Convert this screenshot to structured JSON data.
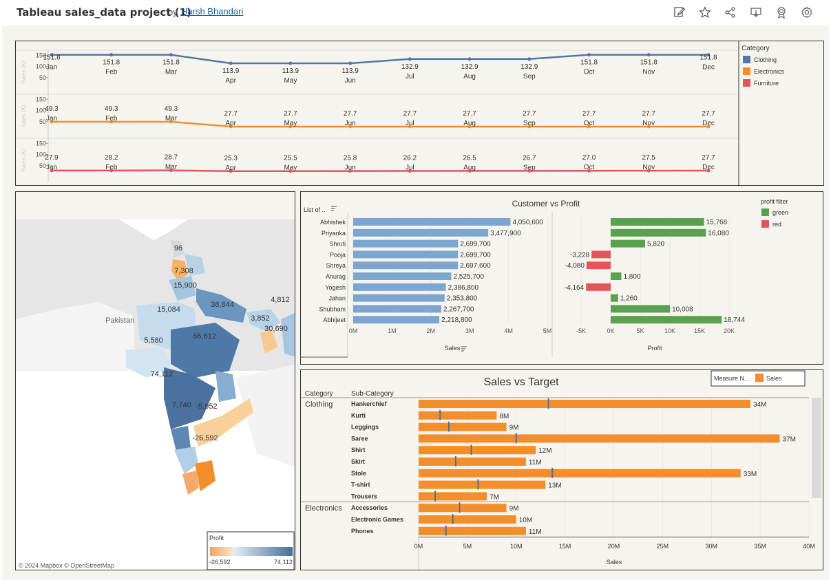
{
  "header": {
    "title": "Tableau sales_data project (1)",
    "by": "by",
    "author": "Harsh Bhandari"
  },
  "toolbar": {
    "icons": [
      "edit-icon",
      "star-icon",
      "share-icon",
      "download-icon",
      "award-icon",
      "gear-icon"
    ]
  },
  "colors": {
    "clothing": "#4e79a7",
    "electronics": "#f28e2b",
    "furniture": "#e15759",
    "green": "#59a14f",
    "red": "#e15759",
    "sales_bar": "#f28e2b",
    "customer_bar": "#7aa6d0",
    "map_high": "#466d97",
    "map_low": "#f5a15c"
  },
  "line_chart": {
    "months": [
      "Jan",
      "Feb",
      "Mar",
      "Apr",
      "May",
      "Jun",
      "Jul",
      "Aug",
      "Sep",
      "Oct",
      "Nov",
      "Dec"
    ],
    "y_ticks": [
      "150",
      "100",
      "50"
    ],
    "y_label": "Sales (K)",
    "series": [
      {
        "name": "Clothing",
        "labels": [
          "151.8",
          "151.8",
          "151.8",
          "113.9",
          "113.9",
          "113.9",
          "132.9",
          "132.9",
          "132.9",
          "151.8",
          "151.8",
          "151.8"
        ],
        "values": [
          151.8,
          151.8,
          151.8,
          113.9,
          113.9,
          113.9,
          132.9,
          132.9,
          132.9,
          151.8,
          151.8,
          151.8
        ]
      },
      {
        "name": "Electronics",
        "labels": [
          "49.3",
          "49.3",
          "49.3",
          "27.7",
          "27.7",
          "27.7",
          "27.7",
          "27.7",
          "27.7",
          "27.7",
          "27.7",
          "27.7"
        ],
        "values": [
          49.3,
          49.3,
          49.3,
          27.7,
          27.7,
          27.7,
          27.7,
          27.7,
          27.7,
          27.7,
          27.7,
          27.7
        ]
      },
      {
        "name": "Furniture",
        "labels": [
          "27.9",
          "28.2",
          "28.7",
          "25.3",
          "25.5",
          "25.8",
          "26.2",
          "26.5",
          "26.7",
          "27.0",
          "27.5",
          "27.7"
        ],
        "values": [
          27.9,
          28.2,
          28.7,
          25.3,
          25.5,
          25.8,
          26.2,
          26.5,
          26.7,
          27.0,
          27.5,
          27.7
        ]
      }
    ]
  },
  "legend_category": {
    "title": "Category",
    "items": [
      "Clothing",
      "Electronics",
      "Furniture"
    ]
  },
  "map": {
    "labels": [
      "96",
      "7,308",
      "15,900",
      "38,844",
      "4,812",
      "15,084",
      "3,852",
      "30,690",
      "66,612",
      "5,580",
      "74,112",
      "7,740",
      "-5,952",
      "-26,592"
    ],
    "place": "Pakistan",
    "copyright": "© 2024 Mapbox  © OpenStreetMap",
    "legend_title": "Profit",
    "legend_min": "-26,592",
    "legend_max": "74,112"
  },
  "customer_chart": {
    "title": "Customer vs Profit",
    "list_header": "List of ..",
    "customers": [
      "Abhishek",
      "Priyanka",
      "Shruti",
      "Pooja",
      "Shreya",
      "Anurag",
      "Yogesh",
      "Jahan",
      "Shubham",
      "Abhijeet"
    ],
    "sales": [
      4050600,
      3477900,
      2699700,
      2699700,
      2697600,
      2525700,
      2386800,
      2353800,
      2267700,
      2218800
    ],
    "sales_labels": [
      "4,050,600",
      "3,477,900",
      "2,699,700",
      "2,699,700",
      "2,697,600",
      "2,525,700",
      "2,386,800",
      "2,353,800",
      "2,267,700",
      "2,218,800"
    ],
    "profit": [
      15768,
      16080,
      5820,
      -3228,
      -4080,
      1800,
      -4164,
      1260,
      10008,
      18744
    ],
    "profit_labels": [
      "15,768",
      "16,080",
      "5,820",
      "-3,228",
      "-4,080",
      "1,800",
      "-4,164",
      "1,260",
      "10,008",
      "18,744"
    ],
    "sales_ticks": [
      "0M",
      "1M",
      "2M",
      "3M",
      "4M",
      "5M"
    ],
    "profit_ticks": [
      "-5K",
      "0K",
      "5K",
      "10K",
      "15K",
      "20K"
    ],
    "sales_axis": "Sales",
    "profit_axis": "Profit",
    "legend_title": "profit filter",
    "legend_items": [
      "green",
      "red"
    ]
  },
  "target_chart": {
    "title": "Sales vs Target",
    "measure_legend": "Measure N...",
    "measure_item": "Sales",
    "col_category": "Category",
    "col_subcategory": "Sub-Category",
    "groups": [
      {
        "category": "Clothing",
        "items": [
          {
            "name": "Hankerchief",
            "value": 34,
            "label": "34M",
            "target": 13.3
          },
          {
            "name": "Kurti",
            "value": 8,
            "label": "8M",
            "target": 2.2
          },
          {
            "name": "Leggings",
            "value": 9,
            "label": "9M",
            "target": 3.1
          },
          {
            "name": "Saree",
            "value": 37,
            "label": "37M",
            "target": 10.0
          },
          {
            "name": "Shirt",
            "value": 12,
            "label": "12M",
            "target": 5.4
          },
          {
            "name": "Skirt",
            "value": 11,
            "label": "11M",
            "target": 3.8
          },
          {
            "name": "Stole",
            "value": 33,
            "label": "33M",
            "target": 13.7
          },
          {
            "name": "T-shirt",
            "value": 13,
            "label": "13M",
            "target": 6.1
          },
          {
            "name": "Trousers",
            "value": 7,
            "label": "7M",
            "target": 1.7
          }
        ]
      },
      {
        "category": "Electronics",
        "items": [
          {
            "name": "Accessories",
            "value": 9,
            "label": "9M",
            "target": 4.2
          },
          {
            "name": "Electronic Games",
            "value": 10,
            "label": "10M",
            "target": 3.5
          },
          {
            "name": "Phones",
            "value": 11,
            "label": "11M",
            "target": 2.8
          }
        ]
      }
    ],
    "ticks": [
      "0M",
      "5M",
      "10M",
      "15M",
      "20M",
      "25M",
      "30M",
      "35M",
      "40M"
    ],
    "x_axis": "Sales"
  },
  "chart_data": [
    {
      "type": "line",
      "title": "",
      "x": [
        "Jan",
        "Feb",
        "Mar",
        "Apr",
        "May",
        "Jun",
        "Jul",
        "Aug",
        "Sep",
        "Oct",
        "Nov",
        "Dec"
      ],
      "ylabel": "Sales (K)",
      "ylim": [
        0,
        160
      ],
      "series": [
        {
          "name": "Clothing",
          "values": [
            151.8,
            151.8,
            151.8,
            113.9,
            113.9,
            113.9,
            132.9,
            132.9,
            132.9,
            151.8,
            151.8,
            151.8
          ]
        },
        {
          "name": "Electronics",
          "values": [
            49.3,
            49.3,
            49.3,
            27.7,
            27.7,
            27.7,
            27.7,
            27.7,
            27.7,
            27.7,
            27.7,
            27.7
          ]
        },
        {
          "name": "Furniture",
          "values": [
            27.9,
            28.2,
            28.7,
            25.3,
            25.5,
            25.8,
            26.2,
            26.5,
            26.7,
            27.0,
            27.5,
            27.7
          ]
        }
      ]
    },
    {
      "type": "bar",
      "title": "Customer vs Profit",
      "categories": [
        "Abhishek",
        "Priyanka",
        "Shruti",
        "Pooja",
        "Shreya",
        "Anurag",
        "Yogesh",
        "Jahan",
        "Shubham",
        "Abhijeet"
      ],
      "series": [
        {
          "name": "Sales",
          "values": [
            4050600,
            3477900,
            2699700,
            2699700,
            2697600,
            2525700,
            2386800,
            2353800,
            2267700,
            2218800
          ]
        },
        {
          "name": "Profit",
          "values": [
            15768,
            16080,
            5820,
            -3228,
            -4080,
            1800,
            -4164,
            1260,
            10008,
            18744
          ]
        }
      ]
    },
    {
      "type": "bar",
      "title": "Sales vs Target",
      "xlabel": "Sales",
      "xlim": [
        0,
        40
      ],
      "categories": [
        "Hankerchief",
        "Kurti",
        "Leggings",
        "Saree",
        "Shirt",
        "Skirt",
        "Stole",
        "T-shirt",
        "Trousers",
        "Accessories",
        "Electronic Games",
        "Phones"
      ],
      "series": [
        {
          "name": "Sales",
          "values": [
            34,
            8,
            9,
            37,
            12,
            11,
            33,
            13,
            7,
            9,
            10,
            11
          ]
        }
      ]
    }
  ]
}
